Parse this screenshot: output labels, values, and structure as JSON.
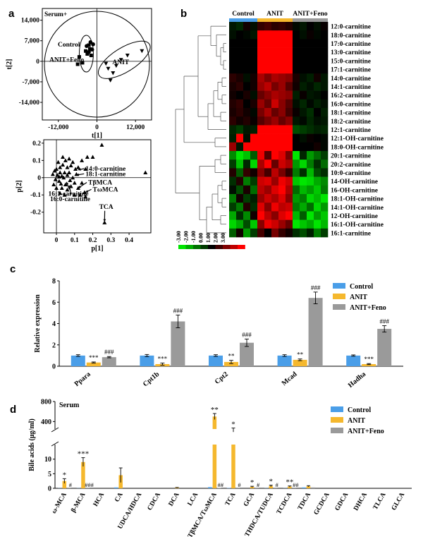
{
  "panel_letters": {
    "a": "a",
    "b": "b",
    "c": "c",
    "d": "d"
  },
  "colors": {
    "control": "#4a9ee8",
    "anit": "#f5b82e",
    "feno": "#9a9a9a",
    "heat_red": "#ff0000",
    "heat_green": "#00e000"
  },
  "chart_data": [
    {
      "type": "scatter",
      "panel": "a-top",
      "title": "Serum+",
      "xlabel": "t[1]",
      "ylabel": "t[2]",
      "xticks": [
        "-12,000",
        "0",
        "12,000"
      ],
      "yticks": [
        "14,000",
        "7,000",
        "0",
        "-7,000",
        "-14,000"
      ],
      "xlim": [
        -17000,
        17000
      ],
      "ylim": [
        -20000,
        18000
      ],
      "group_labels": {
        "left": "Control\nANIT+Feno",
        "right": "ANIT"
      },
      "series": [
        {
          "marker": "square",
          "points": [
            [
              -3500,
              3500
            ],
            [
              -2500,
              5500
            ],
            [
              -1800,
              2000
            ],
            [
              -3000,
              2500
            ],
            [
              -4500,
              -500
            ],
            [
              -5500,
              1500
            ],
            [
              -6000,
              -1000
            ],
            [
              -2200,
              4200
            ]
          ]
        },
        {
          "marker": "circle",
          "points": [
            [
              -2000,
              6500
            ],
            [
              -3200,
              5200
            ],
            [
              -1500,
              4000
            ],
            [
              -2500,
              3200
            ],
            [
              -1200,
              5800
            ]
          ]
        },
        {
          "marker": "triangle",
          "points": [
            [
              3500,
              -2500
            ],
            [
              5000,
              -4000
            ],
            [
              4200,
              -6500
            ],
            [
              6000,
              -1500
            ],
            [
              7500,
              500
            ],
            [
              9500,
              2000
            ],
            [
              14000,
              3500
            ],
            [
              2800,
              -800
            ]
          ]
        }
      ]
    },
    {
      "type": "scatter",
      "panel": "a-bottom",
      "xlabel": "p[1]",
      "ylabel": "p[2]",
      "xticks": [
        "0",
        "0.1",
        "0.2",
        "0.3",
        "0.4"
      ],
      "yticks": [
        "0.2",
        "0.1",
        "0",
        "-0.1",
        "-0.2"
      ],
      "xlim": [
        -0.07,
        0.52
      ],
      "ylim": [
        -0.32,
        0.22
      ],
      "annotations": [
        {
          "text": "14:0-carnitine",
          "x": 0.16,
          "y": 0.04,
          "arrow_x": 0.12,
          "arrow_y": 0.045
        },
        {
          "text": "18:1-carnitine",
          "x": 0.16,
          "y": 0.01,
          "arrow_x": 0.11,
          "arrow_y": 0.015
        },
        {
          "text": "TβMCA",
          "x": 0.175,
          "y": -0.04,
          "arrow_x": 0.12,
          "arrow_y": -0.06
        },
        {
          "text": "TωMCA",
          "x": 0.2,
          "y": -0.08,
          "arrow_x": 0.16,
          "arrow_y": -0.085
        },
        {
          "text": "16:1-carnitine",
          "x": -0.045,
          "y": -0.105,
          "arrow_x": 0.055,
          "arrow_y": -0.025
        },
        {
          "text": "16:0-carnitine",
          "x": -0.035,
          "y": -0.135,
          "arrow_x": 0.07,
          "arrow_y": -0.045
        },
        {
          "text": "TCA",
          "x": 0.235,
          "y": -0.18,
          "arrow_x": 0.265,
          "arrow_y": -0.255
        }
      ],
      "points": [
        [
          0.265,
          -0.26
        ],
        [
          0.25,
          0.19
        ],
        [
          0.49,
          0.03
        ],
        [
          0.2,
          0.12
        ],
        [
          0.17,
          0.12
        ],
        [
          0.14,
          0.1
        ],
        [
          0.16,
          0.05
        ],
        [
          0.12,
          0.06
        ],
        [
          0.11,
          0.02
        ],
        [
          0.06,
          0.06
        ],
        [
          0.08,
          0.07
        ],
        [
          0.05,
          0.1
        ],
        [
          0.035,
          0.12
        ],
        [
          0.01,
          0.09
        ],
        [
          0.0,
          0.05
        ],
        [
          -0.01,
          0.04
        ],
        [
          0.02,
          0.03
        ],
        [
          -0.02,
          0.02
        ],
        [
          0.03,
          0.01
        ],
        [
          0.04,
          0.0
        ],
        [
          -0.005,
          -0.01
        ],
        [
          0.015,
          -0.02
        ],
        [
          0.02,
          0.06
        ],
        [
          0.045,
          0.03
        ],
        [
          0.07,
          0.03
        ],
        [
          0.09,
          0.0
        ],
        [
          0.1,
          -0.03
        ],
        [
          0.08,
          -0.05
        ],
        [
          0.05,
          -0.04
        ],
        [
          0.03,
          -0.06
        ],
        [
          0.06,
          -0.07
        ],
        [
          0.12,
          -0.06
        ],
        [
          0.155,
          -0.085
        ],
        [
          0.13,
          -0.1
        ],
        [
          0.02,
          -0.09
        ],
        [
          0.045,
          -0.1
        ],
        [
          -0.015,
          -0.04
        ],
        [
          0.005,
          0.015
        ],
        [
          0.025,
          -0.035
        ],
        [
          0.06,
          0.015
        ],
        [
          0.075,
          -0.015
        ],
        [
          0.105,
          0.05
        ],
        [
          0.035,
          0.075
        ],
        [
          0.0,
          -0.06
        ],
        [
          0.09,
          0.09
        ],
        [
          0.1,
          -0.1
        ],
        [
          0.14,
          -0.03
        ],
        [
          0.16,
          -0.11
        ],
        [
          0.07,
          0.11
        ],
        [
          0.015,
          0.005
        ]
      ]
    },
    {
      "type": "heatmap",
      "panel": "b",
      "groups": [
        "Control",
        "ANIT",
        "ANIT+Feno"
      ],
      "group_colors": [
        "#4a9ee8",
        "#f5b82e",
        "#9a9a9a"
      ],
      "rows": [
        "12:0-carnitine",
        "18:0-carnitine",
        "17:0-carnitine",
        "13:0-carnitine",
        "15:0-carnitine",
        "17:1-carnitine",
        "14:0-carnitine",
        "14:1-carnitine",
        "16:2-carnitine",
        "16:0-carnitine",
        "18:1-carnitine",
        "18:2-carnitine",
        "12:1-carnitine",
        "12:1-OH-carnitine",
        "18:0-OH-carnitine",
        "20:1-carnitine",
        "20:2-carnitine",
        "10:0-carnitine",
        "14-OH-carnitine",
        "16-OH-carnitine",
        "18:1-OH-carnitine",
        "14:1-OH-carnitine",
        "12-OH-carnitine",
        "16:1-OH-carnitine",
        "16:1-carnitine"
      ],
      "scale_ticks": [
        "-3.00",
        "-2.00",
        "-1.00",
        "0.00",
        "1.00",
        "2.00",
        "3.00"
      ],
      "values": [
        [
          -0.3,
          -0.5,
          0.2,
          -0.2,
          0.6,
          0.8,
          0.5,
          0.6,
          0.4,
          -0.1,
          -0.3,
          0.0,
          -0.2,
          0.1
        ],
        [
          -0.2,
          0.0,
          -0.1,
          -0.3,
          3.0,
          3.0,
          3.0,
          3.0,
          3.0,
          0.0,
          -0.2,
          0.1,
          -0.1,
          0.0
        ],
        [
          0.0,
          0.0,
          0.0,
          0.0,
          3.0,
          3.0,
          3.0,
          3.0,
          3.0,
          0.0,
          0.0,
          0.0,
          0.0,
          0.0
        ],
        [
          0.0,
          0.0,
          0.0,
          0.0,
          3.0,
          3.0,
          3.0,
          3.0,
          3.0,
          0.0,
          0.0,
          0.0,
          0.0,
          0.0
        ],
        [
          0.0,
          0.0,
          0.0,
          0.0,
          3.0,
          3.0,
          3.0,
          3.0,
          3.0,
          0.0,
          0.0,
          0.0,
          0.0,
          0.0
        ],
        [
          0.0,
          0.0,
          0.0,
          0.0,
          3.0,
          3.0,
          3.0,
          3.0,
          3.0,
          0.0,
          0.0,
          0.0,
          0.0,
          0.0
        ],
        [
          0.5,
          0.3,
          -0.2,
          0.2,
          2.0,
          1.5,
          2.0,
          1.8,
          1.6,
          0.3,
          -0.2,
          -0.4,
          0.2,
          -0.3
        ],
        [
          0.3,
          0.5,
          0.0,
          0.2,
          1.8,
          2.2,
          1.4,
          1.8,
          1.0,
          0.2,
          -0.4,
          -0.2,
          -0.5,
          -0.3
        ],
        [
          0.2,
          0.0,
          0.3,
          -0.2,
          1.2,
          1.6,
          2.0,
          1.8,
          1.6,
          -0.4,
          0.1,
          -0.3,
          -0.2,
          0.0
        ],
        [
          0.4,
          0.6,
          0.0,
          0.3,
          1.8,
          1.2,
          2.4,
          1.6,
          1.0,
          -0.2,
          -0.5,
          -0.1,
          -0.4,
          -0.2
        ],
        [
          0.3,
          0.5,
          0.2,
          -0.1,
          1.4,
          2.0,
          1.2,
          1.6,
          0.8,
          0.1,
          -0.3,
          -0.6,
          0.0,
          -0.4
        ],
        [
          0.5,
          0.2,
          0.4,
          0.1,
          1.0,
          1.4,
          1.8,
          1.2,
          1.6,
          -0.3,
          -0.1,
          -0.5,
          -0.2,
          -0.3
        ],
        [
          -0.5,
          -0.8,
          -0.3,
          -0.4,
          3.0,
          3.0,
          3.0,
          3.0,
          3.0,
          -1.0,
          -0.8,
          -0.6,
          -0.4,
          -0.5
        ],
        [
          -0.4,
          3.0,
          -0.2,
          3.0,
          3.0,
          3.0,
          3.0,
          3.0,
          3.0,
          0.0,
          -0.2,
          0.1,
          0.0,
          -0.1
        ],
        [
          1.8,
          -0.3,
          3.0,
          3.0,
          3.0,
          3.0,
          3.0,
          3.0,
          3.0,
          0.0,
          0.0,
          0.0,
          0.2,
          -0.1
        ],
        [
          -1.8,
          -3.0,
          -2.5,
          -1.2,
          2.8,
          1.0,
          3.0,
          2.6,
          1.4,
          -3.0,
          -0.5,
          -2.0,
          -1.4,
          -0.8
        ],
        [
          -0.8,
          -2.5,
          -0.5,
          -2.8,
          2.0,
          3.0,
          1.2,
          2.4,
          2.0,
          -2.0,
          -2.8,
          -1.6,
          -0.6,
          -1.4
        ],
        [
          0.4,
          -1.2,
          0.6,
          0.2,
          1.6,
          0.8,
          2.2,
          1.4,
          0.6,
          -1.6,
          -0.6,
          -2.4,
          -1.0,
          -0.6
        ],
        [
          -0.6,
          0.4,
          -1.6,
          -0.8,
          2.4,
          2.6,
          1.8,
          2.8,
          2.4,
          -2.6,
          -3.0,
          -2.8,
          -2.2,
          -1.8
        ],
        [
          -0.2,
          -1.0,
          0.3,
          -1.4,
          2.2,
          1.8,
          2.6,
          3.0,
          2.0,
          -1.4,
          -2.4,
          -2.0,
          -2.6,
          -1.6
        ],
        [
          -1.6,
          0.2,
          -0.8,
          -0.4,
          1.8,
          2.4,
          2.0,
          2.6,
          1.6,
          -2.0,
          -1.6,
          -2.8,
          -2.4,
          -3.0
        ],
        [
          -0.8,
          -1.6,
          0.4,
          -0.6,
          2.6,
          1.6,
          2.8,
          2.2,
          2.4,
          -1.6,
          -2.2,
          -1.4,
          -2.8,
          -2.0
        ],
        [
          -2.2,
          -0.6,
          -1.8,
          0.2,
          3.0,
          2.2,
          1.6,
          2.6,
          3.0,
          -2.4,
          -1.2,
          -3.0,
          -2.0,
          -2.6
        ],
        [
          -2.8,
          -2.2,
          -1.0,
          -2.6,
          1.6,
          2.8,
          2.4,
          1.8,
          1.2,
          -3.0,
          -2.6,
          -2.2,
          -3.0,
          -2.4
        ],
        [
          -1.2,
          0.2,
          -2.0,
          -0.8,
          0.8,
          0.0,
          1.4,
          0.6,
          0.2,
          -0.6,
          -1.0,
          -0.4,
          -1.6,
          -0.8
        ]
      ]
    },
    {
      "type": "bar",
      "panel": "c",
      "ylabel": "Relative expression",
      "ylim": [
        0,
        8
      ],
      "yticks": [
        "0",
        "2",
        "4",
        "6",
        "8"
      ],
      "categories": [
        "Ppara",
        "Cpt1b",
        "Cpt2",
        "Mcad",
        "Hadha"
      ],
      "series": [
        {
          "name": "Control",
          "values": [
            1.0,
            1.0,
            1.0,
            1.0,
            1.0
          ],
          "errors": [
            0.08,
            0.1,
            0.08,
            0.08,
            0.06
          ]
        },
        {
          "name": "ANIT",
          "values": [
            0.35,
            0.2,
            0.4,
            0.6,
            0.2
          ],
          "errors": [
            0.05,
            0.1,
            0.15,
            0.08,
            0.05
          ],
          "marks": [
            "***",
            "***",
            "**",
            "**",
            "***"
          ]
        },
        {
          "name": "ANIT+Feno",
          "values": [
            0.85,
            4.2,
            2.2,
            6.4,
            3.5
          ],
          "errors": [
            0.06,
            0.6,
            0.35,
            0.55,
            0.3
          ],
          "marks": [
            "###",
            "###",
            "###",
            "###",
            "###"
          ]
        }
      ]
    },
    {
      "type": "bar",
      "panel": "d",
      "title": "Serum",
      "ylabel": "Bile acids (μg/ml)",
      "yticks_lower": [
        "0",
        "5",
        "10"
      ],
      "yticks_upper": [
        "400",
        "800"
      ],
      "axis_break": [
        15,
        250
      ],
      "categories": [
        "ω-MCA",
        "β-MCA",
        "HCA",
        "CA",
        "UDCA/HDCA",
        "CDCA",
        "DCA",
        "LCA",
        "TβMCA/TωMCA",
        "TCA",
        "GCA",
        "THDCA/TUDCA",
        "TCDCA",
        "TDCA",
        "GCDCA",
        "GDCA",
        "DHCA",
        "TLCA",
        "GLCA"
      ],
      "series": [
        {
          "name": "Control",
          "values": [
            0.05,
            0.05,
            0,
            0.3,
            0,
            0,
            0,
            0,
            0.4,
            0.1,
            0,
            0.05,
            0.05,
            0.3,
            0,
            0,
            0,
            0,
            0
          ],
          "errors": [
            0,
            0,
            0,
            0,
            0,
            0,
            0,
            0,
            0,
            0,
            0,
            0,
            0,
            0,
            0,
            0,
            0,
            0,
            0
          ]
        },
        {
          "name": "ANIT",
          "values": [
            2.5,
            9.0,
            0,
            4.5,
            0,
            0,
            0.2,
            0,
            500,
            230,
            0.5,
            0.8,
            0.6,
            0.7,
            0,
            0,
            0,
            0,
            0
          ],
          "errors": [
            0.8,
            1.5,
            0,
            2.5,
            0,
            0,
            0.1,
            0,
            60,
            40,
            0.2,
            0.3,
            0.2,
            0.2,
            0,
            0,
            0,
            0,
            0
          ],
          "marks": [
            "*",
            "***",
            "",
            "",
            "",
            "",
            "",
            "",
            "**",
            "*",
            "*",
            "*",
            "**",
            "",
            "",
            "",
            "",
            "",
            ""
          ]
        },
        {
          "name": "ANIT+Feno",
          "values": [
            0.05,
            0.05,
            0,
            0,
            0,
            0,
            0,
            0,
            0.1,
            0.05,
            0.05,
            0.05,
            0.05,
            0.3,
            0,
            0,
            0,
            0,
            0
          ],
          "errors": [
            0,
            0,
            0,
            0,
            0,
            0,
            0,
            0,
            0,
            0,
            0,
            0,
            0,
            0,
            0,
            0,
            0,
            0,
            0
          ],
          "marks": [
            "#",
            "###",
            "",
            "",
            "",
            "",
            "",
            "",
            "##",
            "#",
            "#",
            "#",
            "##",
            "",
            "",
            "",
            "",
            "",
            ""
          ]
        }
      ]
    }
  ]
}
